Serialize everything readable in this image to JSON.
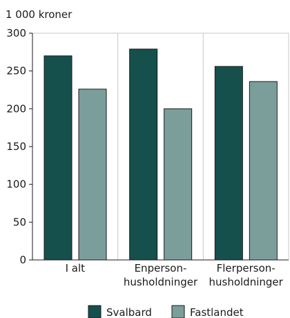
{
  "chart_data": {
    "type": "bar",
    "unit_label": "1 000 kroner",
    "categories": [
      [
        "I alt"
      ],
      [
        "Enperson-",
        "husholdninger"
      ],
      [
        "Flerperson-",
        "husholdninger"
      ]
    ],
    "series": [
      {
        "name": "Svalbard",
        "color": "#15504d",
        "values": [
          270,
          279,
          256
        ]
      },
      {
        "name": "Fastlandet",
        "color": "#7b9e9b",
        "values": [
          226,
          200,
          236
        ]
      }
    ],
    "ylim": [
      0,
      300
    ],
    "yticks": [
      0,
      50,
      100,
      150,
      200,
      250,
      300
    ],
    "grid": "vertical-separators",
    "legend_position": "bottom-center"
  }
}
